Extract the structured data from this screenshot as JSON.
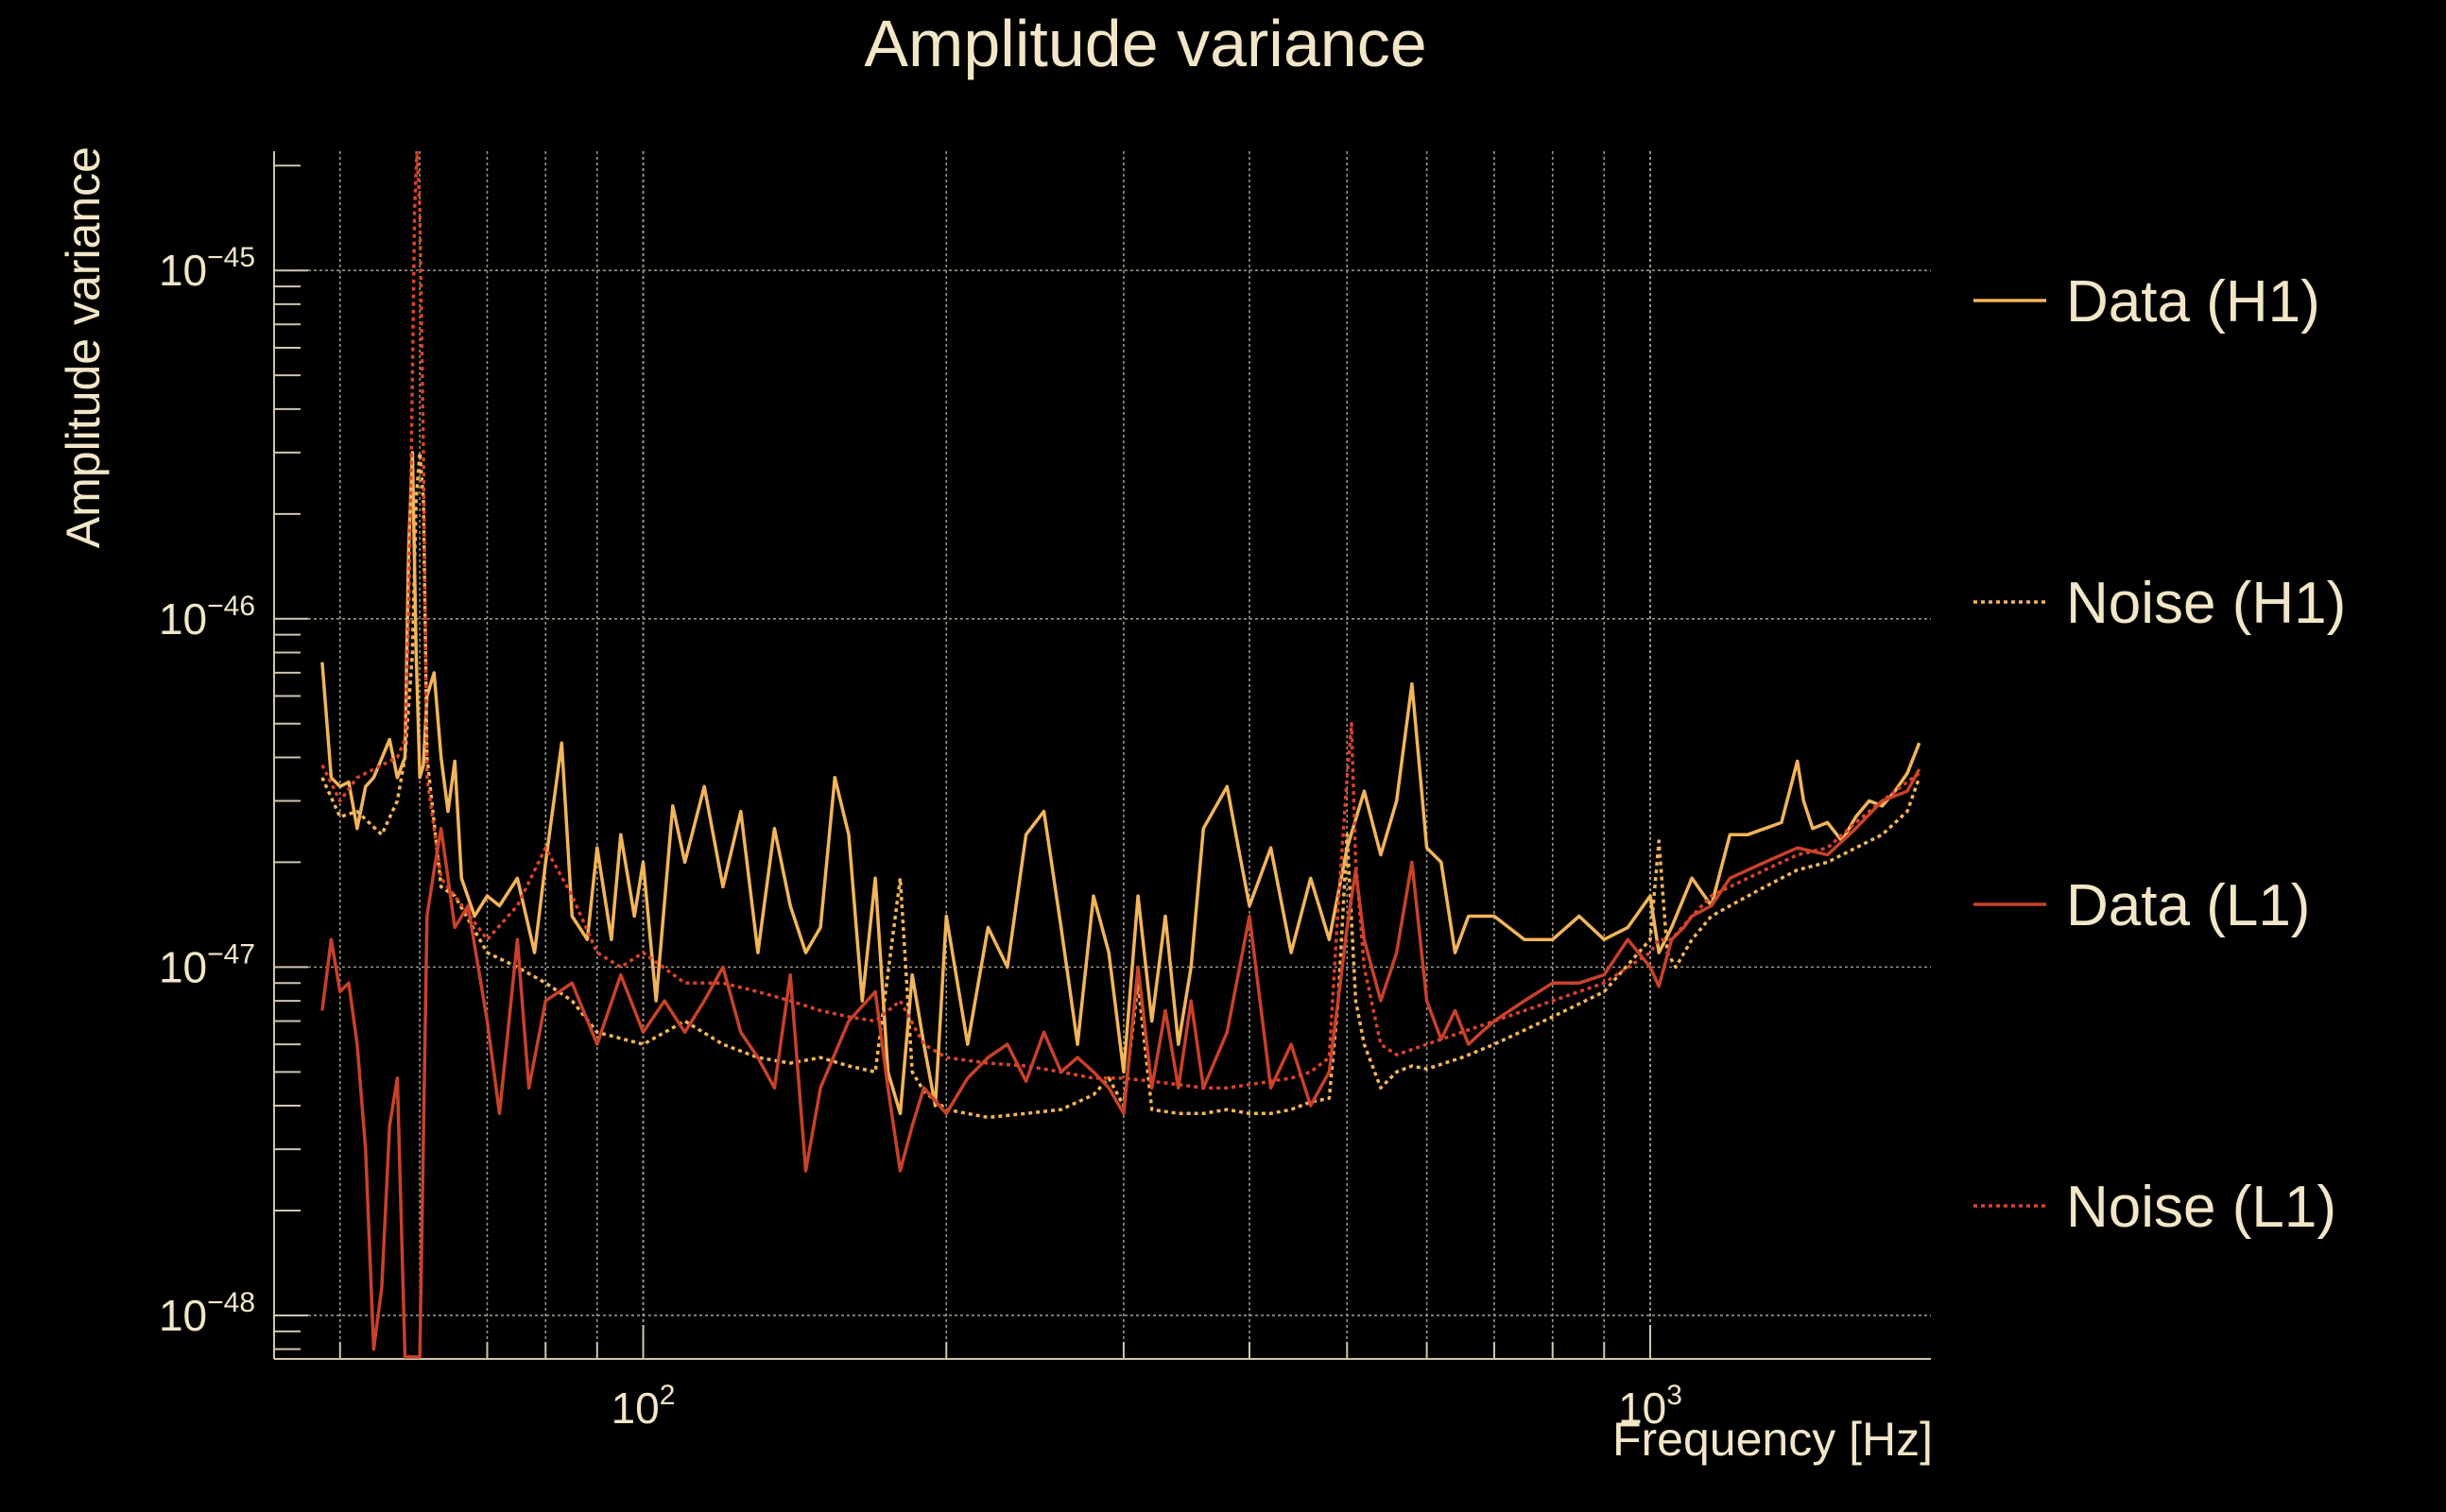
{
  "chart_data": {
    "type": "line",
    "title": "Amplitude variance",
    "xlabel": "Frequency [Hz]",
    "ylabel": "Amplitude variance",
    "x_scale": "log",
    "y_scale": "log",
    "xlim": [
      43,
      1900
    ],
    "ylim": [
      7.5e-49,
      2.2e-45
    ],
    "grid": true,
    "legend_position": "right",
    "x_ticks": [
      {
        "value": 100,
        "base": "10",
        "exp": "2"
      },
      {
        "value": 1000,
        "base": "10",
        "exp": "3"
      }
    ],
    "y_ticks": [
      {
        "value": 1e-45,
        "base": "10",
        "exp": "−45"
      },
      {
        "value": 1e-46,
        "base": "10",
        "exp": "−46"
      },
      {
        "value": 1e-47,
        "base": "10",
        "exp": "−47"
      },
      {
        "value": 1e-48,
        "base": "10",
        "exp": "−48"
      }
    ],
    "series": [
      {
        "name": "Data (H1)",
        "color": "#f2b55a",
        "dash": "solid",
        "x": [
          48,
          49,
          50,
          51,
          52,
          53,
          54,
          56,
          57,
          58,
          58.5,
          59,
          59.5,
          60,
          60.5,
          61,
          62,
          63,
          64,
          65,
          66,
          68,
          70,
          72,
          75,
          78,
          80,
          83,
          85,
          88,
          90,
          93,
          95,
          98,
          100,
          103,
          107,
          110,
          115,
          120,
          125,
          130,
          135,
          140,
          145,
          150,
          155,
          160,
          165,
          170,
          175,
          180,
          185,
          190,
          195,
          200,
          210,
          220,
          230,
          240,
          250,
          260,
          270,
          280,
          290,
          300,
          310,
          320,
          330,
          340,
          350,
          360,
          380,
          390,
          400,
          420,
          440,
          460,
          480,
          500,
          520,
          540,
          560,
          580,
          600,
          620,
          640,
          660,
          680,
          700,
          750,
          800,
          850,
          900,
          950,
          1000,
          1020,
          1050,
          1100,
          1150,
          1200,
          1250,
          1300,
          1350,
          1400,
          1420,
          1450,
          1500,
          1550,
          1600,
          1650,
          1700,
          1750,
          1800,
          1850
        ],
        "y": [
          7.5e-47,
          3.5e-47,
          3.3e-47,
          3.4e-47,
          2.5e-47,
          3.3e-47,
          3.5e-47,
          4.5e-47,
          3.5e-47,
          4e-47,
          1.6e-46,
          3e-46,
          8e-47,
          3.5e-47,
          3.8e-47,
          6e-47,
          7e-47,
          4e-47,
          2.8e-47,
          3.9e-47,
          1.8e-47,
          1.4e-47,
          1.6e-47,
          1.5e-47,
          1.8e-47,
          1.1e-47,
          2e-47,
          4.4e-47,
          1.4e-47,
          1.2e-47,
          2.2e-47,
          1.2e-47,
          2.4e-47,
          1.4e-47,
          2e-47,
          8e-48,
          2.9e-47,
          2e-47,
          3.3e-47,
          1.7e-47,
          2.8e-47,
          1.1e-47,
          2.5e-47,
          1.5e-47,
          1.1e-47,
          1.3e-47,
          3.5e-47,
          2.4e-47,
          8e-48,
          1.8e-47,
          5e-48,
          3.8e-48,
          9.5e-48,
          6e-48,
          4e-48,
          1.4e-47,
          6e-48,
          1.3e-47,
          1e-47,
          2.4e-47,
          2.8e-47,
          1.3e-47,
          6e-48,
          1.6e-47,
          1.1e-47,
          5e-48,
          1.6e-47,
          7e-48,
          1.4e-47,
          6e-48,
          1e-47,
          2.5e-47,
          3.3e-47,
          2.2e-47,
          1.5e-47,
          2.2e-47,
          1.1e-47,
          1.8e-47,
          1.2e-47,
          2.2e-47,
          3.2e-47,
          2.1e-47,
          3e-47,
          6.5e-47,
          2.2e-47,
          2e-47,
          1.1e-47,
          1.4e-47,
          1.4e-47,
          1.4e-47,
          1.2e-47,
          1.2e-47,
          1.4e-47,
          1.2e-47,
          1.3e-47,
          1.6e-47,
          1.1e-47,
          1.3e-47,
          1.8e-47,
          1.5e-47,
          2.4e-47,
          2.4e-47,
          2.5e-47,
          2.6e-47,
          3.9e-47,
          3e-47,
          2.5e-47,
          2.6e-47,
          2.3e-47,
          2.7e-47,
          3e-47,
          2.9e-47,
          3.2e-47,
          3.6e-47,
          4.4e-47
        ]
      },
      {
        "name": "Noise (H1)",
        "color": "#f2b55a",
        "dash": "dotted",
        "x": [
          48,
          50,
          52,
          55,
          57,
          58,
          59,
          59.5,
          60,
          60.5,
          61,
          63,
          65,
          70,
          75,
          80,
          85,
          90,
          100,
          110,
          120,
          130,
          140,
          150,
          160,
          170,
          180,
          185,
          190,
          200,
          220,
          240,
          260,
          280,
          290,
          300,
          310,
          320,
          340,
          360,
          380,
          400,
          420,
          440,
          460,
          480,
          490,
          500,
          510,
          520,
          540,
          560,
          580,
          600,
          650,
          700,
          800,
          900,
          1000,
          1020,
          1040,
          1060,
          1100,
          1150,
          1200,
          1300,
          1400,
          1500,
          1600,
          1700,
          1800,
          1850
        ],
        "y": [
          3.5e-47,
          2.7e-47,
          2.8e-47,
          2.4e-47,
          3e-47,
          4e-47,
          8e-47,
          2.2e-46,
          3e-46,
          2.2e-46,
          4e-47,
          1.7e-47,
          1.6e-47,
          1.1e-47,
          1e-47,
          9e-48,
          8e-48,
          6.5e-48,
          6e-48,
          7e-48,
          6e-48,
          5.5e-48,
          5.3e-48,
          5.5e-48,
          5.2e-48,
          5e-48,
          1.8e-47,
          5e-48,
          4.4e-48,
          3.9e-48,
          3.7e-48,
          3.8e-48,
          3.9e-48,
          4.3e-48,
          4.8e-48,
          4e-48,
          9e-48,
          3.9e-48,
          3.8e-48,
          3.8e-48,
          3.9e-48,
          3.8e-48,
          3.8e-48,
          3.9e-48,
          4.1e-48,
          4.2e-48,
          8e-48,
          2.4e-47,
          8e-48,
          6e-48,
          4.5e-48,
          5e-48,
          5.2e-48,
          5.1e-48,
          5.5e-48,
          6e-48,
          7.2e-48,
          8.5e-48,
          1.2e-47,
          2.3e-47,
          1.1e-47,
          1e-47,
          1.2e-47,
          1.4e-47,
          1.5e-47,
          1.7e-47,
          1.9e-47,
          2e-47,
          2.2e-47,
          2.4e-47,
          2.8e-47,
          3.5e-47
        ]
      },
      {
        "name": "Data (L1)",
        "color": "#c8412a",
        "dash": "solid",
        "x": [
          48,
          49,
          50,
          51,
          52,
          53,
          54,
          55,
          56,
          57,
          58,
          58.5,
          59,
          59.5,
          60,
          61,
          62,
          63,
          64,
          65,
          67,
          70,
          72,
          75,
          77,
          80,
          85,
          90,
          95,
          100,
          105,
          110,
          115,
          120,
          125,
          130,
          135,
          140,
          145,
          150,
          160,
          170,
          175,
          180,
          185,
          190,
          200,
          210,
          220,
          230,
          240,
          250,
          260,
          270,
          280,
          290,
          300,
          310,
          320,
          330,
          340,
          350,
          360,
          380,
          400,
          420,
          440,
          460,
          480,
          500,
          510,
          520,
          540,
          560,
          580,
          600,
          620,
          640,
          660,
          680,
          700,
          750,
          800,
          850,
          900,
          950,
          1000,
          1020,
          1050,
          1080,
          1100,
          1150,
          1200,
          1300,
          1400,
          1500,
          1600,
          1700,
          1800,
          1850
        ],
        "y": [
          7.5e-48,
          1.2e-47,
          8.5e-48,
          9e-48,
          6e-48,
          3e-48,
          8e-49,
          1.2e-48,
          3.5e-48,
          4.8e-48,
          7.6e-49,
          7.6e-49,
          7.6e-49,
          7.6e-49,
          7.6e-49,
          1.4e-47,
          1.9e-47,
          2.5e-47,
          1.8e-47,
          1.3e-47,
          1.5e-47,
          7e-48,
          3.8e-48,
          1.2e-47,
          4.5e-48,
          8e-48,
          9e-48,
          6e-48,
          9.5e-48,
          6.5e-48,
          8e-48,
          6.5e-48,
          8e-48,
          1e-47,
          6.5e-48,
          5.5e-48,
          4.5e-48,
          9.5e-48,
          2.6e-48,
          4.5e-48,
          7e-48,
          8.5e-48,
          4.5e-48,
          2.6e-48,
          3.5e-48,
          4.5e-48,
          3.8e-48,
          4.8e-48,
          5.5e-48,
          6e-48,
          4.7e-48,
          6.5e-48,
          5e-48,
          5.5e-48,
          5e-48,
          4.5e-48,
          3.8e-48,
          1e-47,
          4.5e-48,
          7.5e-48,
          4.5e-48,
          8e-48,
          4.5e-48,
          6.5e-48,
          1.4e-47,
          4.5e-48,
          6e-48,
          4e-48,
          5e-48,
          1.3e-47,
          1.9e-47,
          1.2e-47,
          8e-48,
          1.1e-47,
          2e-47,
          8e-48,
          6.2e-48,
          7.5e-48,
          6e-48,
          6.5e-48,
          7e-48,
          8e-48,
          9e-48,
          9e-48,
          9.5e-48,
          1.2e-47,
          1e-47,
          8.8e-48,
          1.2e-47,
          1.3e-47,
          1.4e-47,
          1.5e-47,
          1.8e-47,
          2e-47,
          2.2e-47,
          2.1e-47,
          2.5e-47,
          3e-47,
          3.2e-47,
          3.7e-47
        ]
      },
      {
        "name": "Noise (L1)",
        "color": "#d8422c",
        "dash": "dotted",
        "x": [
          48,
          50,
          52,
          55,
          57,
          58,
          58.5,
          59,
          59.3,
          59.6,
          60,
          60.5,
          61,
          63,
          65,
          70,
          75,
          80,
          85,
          90,
          95,
          100,
          110,
          120,
          130,
          140,
          150,
          160,
          170,
          180,
          190,
          200,
          220,
          240,
          260,
          280,
          300,
          320,
          340,
          360,
          380,
          400,
          420,
          440,
          460,
          480,
          490,
          500,
          505,
          510,
          520,
          540,
          560,
          600,
          650,
          700,
          800,
          900,
          1000,
          1020,
          1050,
          1100,
          1150,
          1200,
          1300,
          1400,
          1500,
          1600,
          1700,
          1800,
          1850
        ],
        "y": [
          3.8e-47,
          3e-47,
          3.5e-47,
          3.8e-47,
          4e-47,
          4.5e-47,
          1e-46,
          5e-46,
          1.5e-45,
          2.2e-45,
          1.5e-45,
          3e-46,
          3.5e-47,
          1.8e-47,
          1.6e-47,
          1.2e-47,
          1.5e-47,
          2.2e-47,
          1.6e-47,
          1.1e-47,
          1e-47,
          1.1e-47,
          9e-48,
          9e-48,
          8.5e-48,
          8e-48,
          7.5e-48,
          7.2e-48,
          7e-48,
          8e-48,
          6e-48,
          5.5e-48,
          5.3e-48,
          5.2e-48,
          5e-48,
          4.8e-48,
          4.8e-48,
          4.7e-48,
          4.6e-48,
          4.5e-48,
          4.5e-48,
          4.6e-48,
          4.7e-48,
          4.8e-48,
          5e-48,
          5.5e-48,
          1.5e-47,
          3.5e-47,
          5e-47,
          2e-47,
          1e-47,
          6e-48,
          5.6e-48,
          6e-48,
          6.5e-48,
          7e-48,
          8e-48,
          9e-48,
          1.1e-47,
          1.2e-47,
          1.2e-47,
          1.4e-47,
          1.6e-47,
          1.7e-47,
          1.9e-47,
          2.1e-47,
          2.2e-47,
          2.6e-47,
          3e-47,
          3.4e-47,
          3.6e-47
        ]
      }
    ]
  }
}
